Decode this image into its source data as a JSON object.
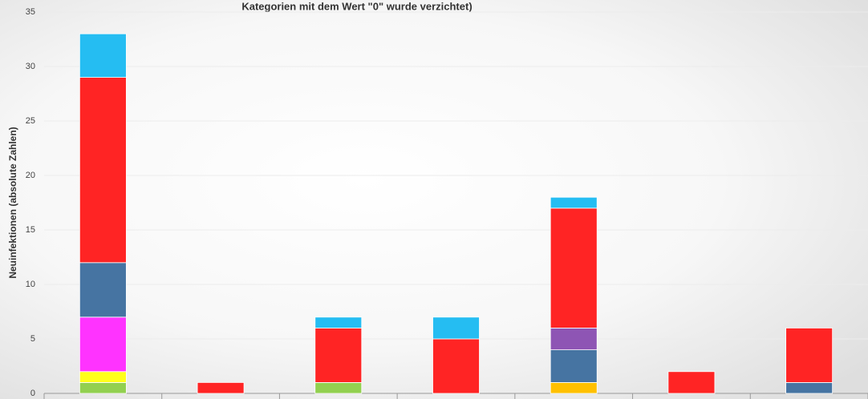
{
  "chart_data": {
    "type": "stacked_bar",
    "title": "Kategorien mit dem Wert \"0\" wurde verzichtet)",
    "y_label": "Neuinfektionen (absolute Zahlen)",
    "categories": [
      null,
      null,
      null,
      null,
      null,
      null,
      null
    ],
    "series": [
      {
        "color": "#92d050",
        "values": [
          1,
          0,
          1,
          0,
          0,
          0,
          0
        ]
      },
      {
        "color": "#ffc000",
        "values": [
          0,
          0,
          0,
          0,
          1,
          0,
          0
        ]
      },
      {
        "color": "#ffff1a",
        "values": [
          1,
          0,
          0,
          0,
          0,
          0,
          0
        ]
      },
      {
        "color": "#ff33ff",
        "values": [
          5,
          0,
          0,
          0,
          0,
          0,
          0
        ]
      },
      {
        "color": "#4674a2",
        "values": [
          5,
          0,
          0,
          0,
          3,
          0,
          1
        ]
      },
      {
        "color": "#8e55b4",
        "values": [
          0,
          0,
          0,
          0,
          2,
          0,
          0
        ]
      },
      {
        "color": "#ff2424",
        "values": [
          17,
          1,
          5,
          5,
          11,
          2,
          5
        ]
      },
      {
        "color": "#25bdf2",
        "values": [
          4,
          0,
          1,
          2,
          1,
          0,
          0
        ]
      }
    ],
    "ylim": [
      0,
      35
    ],
    "yticks": [
      0,
      5,
      10,
      15,
      20,
      25,
      30,
      35
    ],
    "grid": true
  }
}
